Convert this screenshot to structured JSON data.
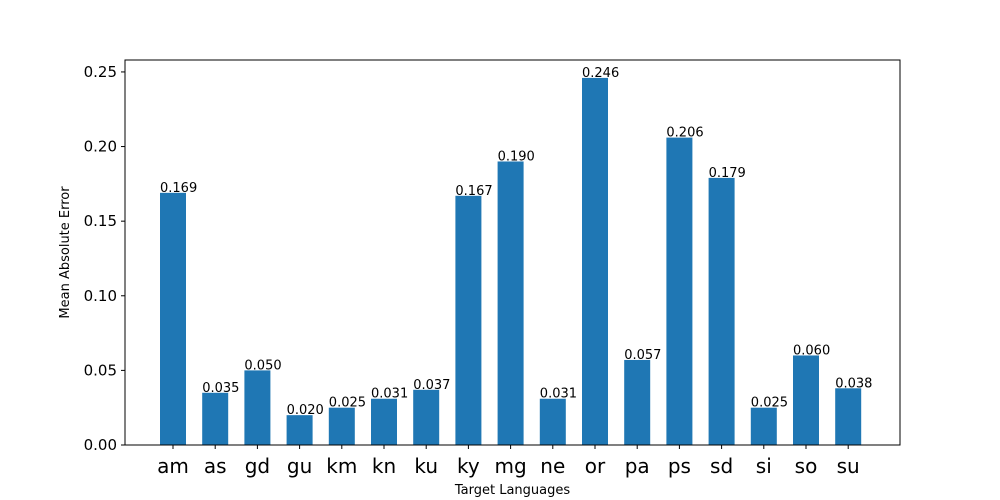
{
  "chart_data": {
    "type": "bar",
    "categories": [
      "am",
      "as",
      "gd",
      "gu",
      "km",
      "kn",
      "ku",
      "ky",
      "mg",
      "ne",
      "or",
      "pa",
      "ps",
      "sd",
      "si",
      "so",
      "su"
    ],
    "values": [
      0.169,
      0.035,
      0.05,
      0.02,
      0.025,
      0.031,
      0.037,
      0.167,
      0.19,
      0.031,
      0.246,
      0.057,
      0.206,
      0.179,
      0.025,
      0.06,
      0.038
    ],
    "data_labels": [
      "0.169",
      "0.035",
      "0.050",
      "0.020",
      "0.025",
      "0.031",
      "0.037",
      "0.167",
      "0.190",
      "0.031",
      "0.246",
      "0.057",
      "0.206",
      "0.179",
      "0.025",
      "0.060",
      "0.038"
    ],
    "title": "",
    "xlabel": "Target Languages",
    "ylabel": "Mean Absolute Error",
    "ylim": [
      0,
      0.258
    ],
    "yticks": [
      0.0,
      0.05,
      0.1,
      0.15,
      0.2,
      0.25
    ],
    "ytick_labels": [
      "0.00",
      "0.05",
      "0.10",
      "0.15",
      "0.20",
      "0.25"
    ],
    "bar_color": "#1f77b4",
    "grid": false,
    "legend": "none"
  }
}
